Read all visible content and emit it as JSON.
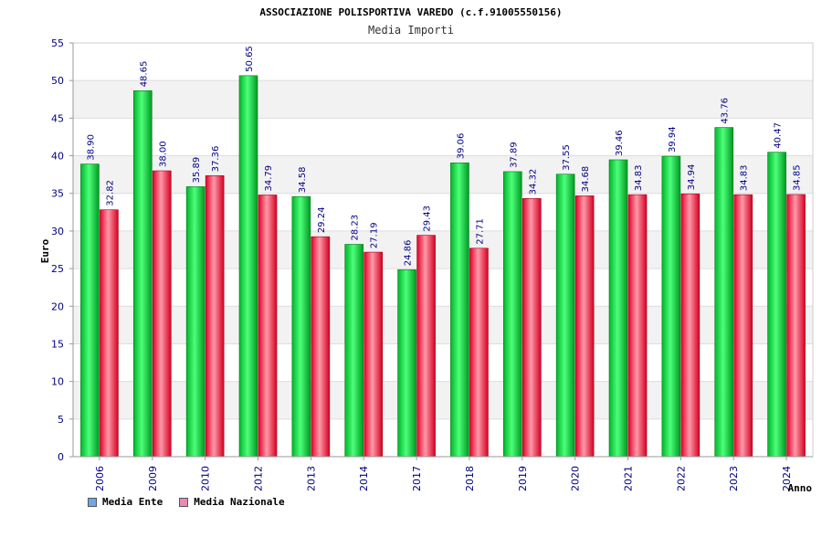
{
  "chart_data": {
    "type": "bar",
    "title": "ASSOCIAZIONE POLISPORTIVA VAREDO (c.f.91005550156)",
    "subtitle": "Media Importi",
    "xlabel": "Anno",
    "ylabel": "Euro",
    "ylim": [
      0,
      55
    ],
    "yticks": [
      0,
      5,
      10,
      15,
      20,
      25,
      30,
      35,
      40,
      45,
      50,
      55
    ],
    "ytick_labels": [
      "0",
      "5",
      "10",
      "15",
      "20",
      "25",
      "30",
      "35",
      "40",
      "45",
      "50",
      "55"
    ],
    "grid": true,
    "legend_position": "bottom-left",
    "categories": [
      "2006",
      "2009",
      "2010",
      "2012",
      "2013",
      "2014",
      "2017",
      "2018",
      "2019",
      "2020",
      "2021",
      "2022",
      "2023",
      "2024"
    ],
    "series": [
      {
        "name": "Media Ente",
        "color": "#00cc33",
        "legend_color": "#6ea6e8",
        "values": [
          38.9,
          48.65,
          35.89,
          50.65,
          34.58,
          28.23,
          24.86,
          39.06,
          37.89,
          37.55,
          39.46,
          39.94,
          43.76,
          40.47
        ],
        "labels": [
          "38.90",
          "48.65",
          "35.89",
          "50.65",
          "34.58",
          "28.23",
          "24.86",
          "39.06",
          "37.89",
          "37.55",
          "39.46",
          "39.94",
          "43.76",
          "40.47"
        ]
      },
      {
        "name": "Media Nazionale",
        "color": "#ee1133",
        "legend_color": "#e88ab8",
        "values": [
          32.82,
          38.0,
          37.36,
          34.79,
          29.24,
          27.19,
          29.43,
          27.71,
          34.32,
          34.68,
          34.83,
          34.94,
          34.83,
          34.85
        ],
        "labels": [
          "32.82",
          "38.00",
          "37.36",
          "34.79",
          "29.24",
          "27.19",
          "29.43",
          "27.71",
          "34.32",
          "34.68",
          "34.83",
          "34.94",
          "34.83",
          "34.85"
        ]
      }
    ]
  }
}
